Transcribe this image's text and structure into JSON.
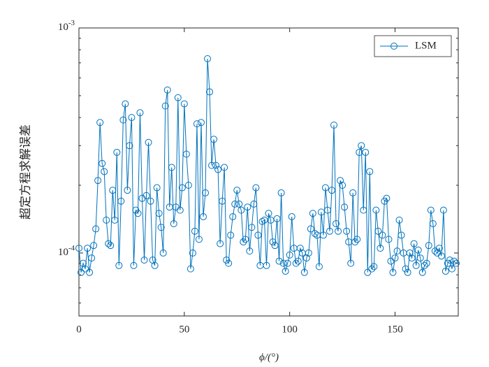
{
  "chart_data": {
    "type": "line",
    "x_label": "ϕ/(°)",
    "y_label": "超定方程求解误差",
    "xlim": [
      0,
      180
    ],
    "xticks": [
      0,
      50,
      100,
      150
    ],
    "ylim": [
      5.25e-05,
      0.001
    ],
    "log_y": true,
    "yticks": [
      {
        "value": 0.0001,
        "label": "10^-4"
      },
      {
        "value": 0.001,
        "label": "10^-3"
      }
    ],
    "yminorticks": [
      6e-05,
      7e-05,
      8e-05,
      9e-05,
      0.0002,
      0.0003,
      0.0004,
      0.0005,
      0.0006,
      0.0007,
      0.0008,
      0.0009
    ],
    "legend": "upper right",
    "x": [
      0,
      1,
      2,
      3,
      4,
      5,
      6,
      7,
      8,
      9,
      10,
      11,
      12,
      13,
      14,
      15,
      16,
      17,
      18,
      19,
      20,
      21,
      22,
      23,
      24,
      25,
      26,
      27,
      28,
      29,
      30,
      31,
      32,
      33,
      34,
      35,
      36,
      37,
      38,
      39,
      40,
      41,
      42,
      43,
      44,
      45,
      46,
      47,
      48,
      49,
      50,
      51,
      52,
      53,
      54,
      55,
      56,
      57,
      58,
      59,
      60,
      61,
      62,
      63,
      64,
      65,
      66,
      67,
      68,
      69,
      70,
      71,
      72,
      73,
      74,
      75,
      76,
      77,
      78,
      79,
      80,
      81,
      82,
      83,
      84,
      85,
      86,
      87,
      88,
      89,
      90,
      91,
      92,
      93,
      94,
      95,
      96,
      97,
      98,
      99,
      100,
      101,
      102,
      103,
      104,
      105,
      106,
      107,
      108,
      109,
      110,
      111,
      112,
      113,
      114,
      115,
      116,
      117,
      118,
      119,
      120,
      121,
      122,
      123,
      124,
      125,
      126,
      127,
      128,
      129,
      130,
      131,
      132,
      133,
      134,
      135,
      136,
      137,
      138,
      139,
      140,
      141,
      142,
      143,
      144,
      145,
      146,
      147,
      148,
      149,
      150,
      151,
      152,
      153,
      154,
      155,
      156,
      157,
      158,
      159,
      160,
      161,
      162,
      163,
      164,
      165,
      166,
      167,
      168,
      169,
      170,
      171,
      172,
      173,
      174,
      175,
      176,
      177,
      178,
      179
    ],
    "series": [
      {
        "name": "LSM",
        "color": "#0072BD",
        "values": [
          0.000105,
          8.2e-05,
          9e-05,
          8.5e-05,
          0.000105,
          8.2e-05,
          9.5e-05,
          0.000108,
          0.000128,
          0.00021,
          0.00038,
          0.00025,
          0.00023,
          0.00014,
          0.00011,
          0.000108,
          0.00019,
          0.00014,
          0.00028,
          8.8e-05,
          0.00017,
          0.00039,
          0.00046,
          0.00019,
          0.0003,
          0.0004,
          8.8e-05,
          0.000155,
          0.00015,
          0.00042,
          0.000175,
          9.3e-05,
          0.00018,
          0.00031,
          0.00017,
          9.3e-05,
          8.8e-05,
          0.000195,
          0.00015,
          0.00013,
          0.0001,
          0.00045,
          0.00053,
          0.00016,
          0.00024,
          0.000135,
          0.00016,
          0.00049,
          0.000155,
          0.000195,
          0.00046,
          0.000275,
          0.0002,
          8.5e-05,
          0.0001,
          0.000125,
          0.000375,
          0.000115,
          0.00038,
          0.000145,
          0.000185,
          0.00073,
          0.00052,
          0.000245,
          0.00032,
          0.000245,
          0.000235,
          0.00011,
          0.00017,
          0.00024,
          9.3e-05,
          9e-05,
          0.00012,
          0.000145,
          0.000165,
          0.00019,
          0.000165,
          0.000155,
          0.000112,
          0.000115,
          0.00016,
          0.000102,
          0.00013,
          0.000165,
          0.000195,
          0.00012,
          8.8e-05,
          0.000138,
          0.00014,
          8.8e-05,
          0.00015,
          0.00014,
          0.000112,
          0.000108,
          0.000142,
          9.2e-05,
          0.000185,
          9e-05,
          8.3e-05,
          9e-05,
          9.8e-05,
          0.000145,
          0.000105,
          9e-05,
          9.2e-05,
          0.000105,
          0.0001,
          8.2e-05,
          9.5e-05,
          0.0001,
          0.000128,
          0.00015,
          0.000122,
          0.00012,
          8.7e-05,
          0.000152,
          0.00012,
          0.000195,
          0.000155,
          0.000125,
          0.00019,
          0.00037,
          0.000135,
          0.000125,
          0.00021,
          0.0002,
          0.00016,
          0.000125,
          0.000112,
          9e-05,
          0.000185,
          0.000112,
          0.000115,
          0.00028,
          0.0003,
          0.000155,
          0.00028,
          8.2e-05,
          0.00023,
          8.5e-05,
          8.7e-05,
          0.000155,
          0.000125,
          0.000105,
          0.00012,
          0.00017,
          0.000175,
          0.000115,
          9.2e-05,
          8.2e-05,
          9.5e-05,
          0.000102,
          0.00014,
          0.00012,
          0.0001,
          8.5e-05,
          8.2e-05,
          0.0001,
          9.5e-05,
          0.00011,
          8.8e-05,
          0.000103,
          9.5e-05,
          8.2e-05,
          8.8e-05,
          9e-05,
          0.000108,
          0.000155,
          0.000135,
          0.000102,
          0.0001,
          0.000105,
          9.7e-05,
          0.000155,
          8.3e-05,
          9e-05,
          9.3e-05,
          8.5e-05,
          9.2e-05,
          9e-05
        ]
      }
    ]
  }
}
